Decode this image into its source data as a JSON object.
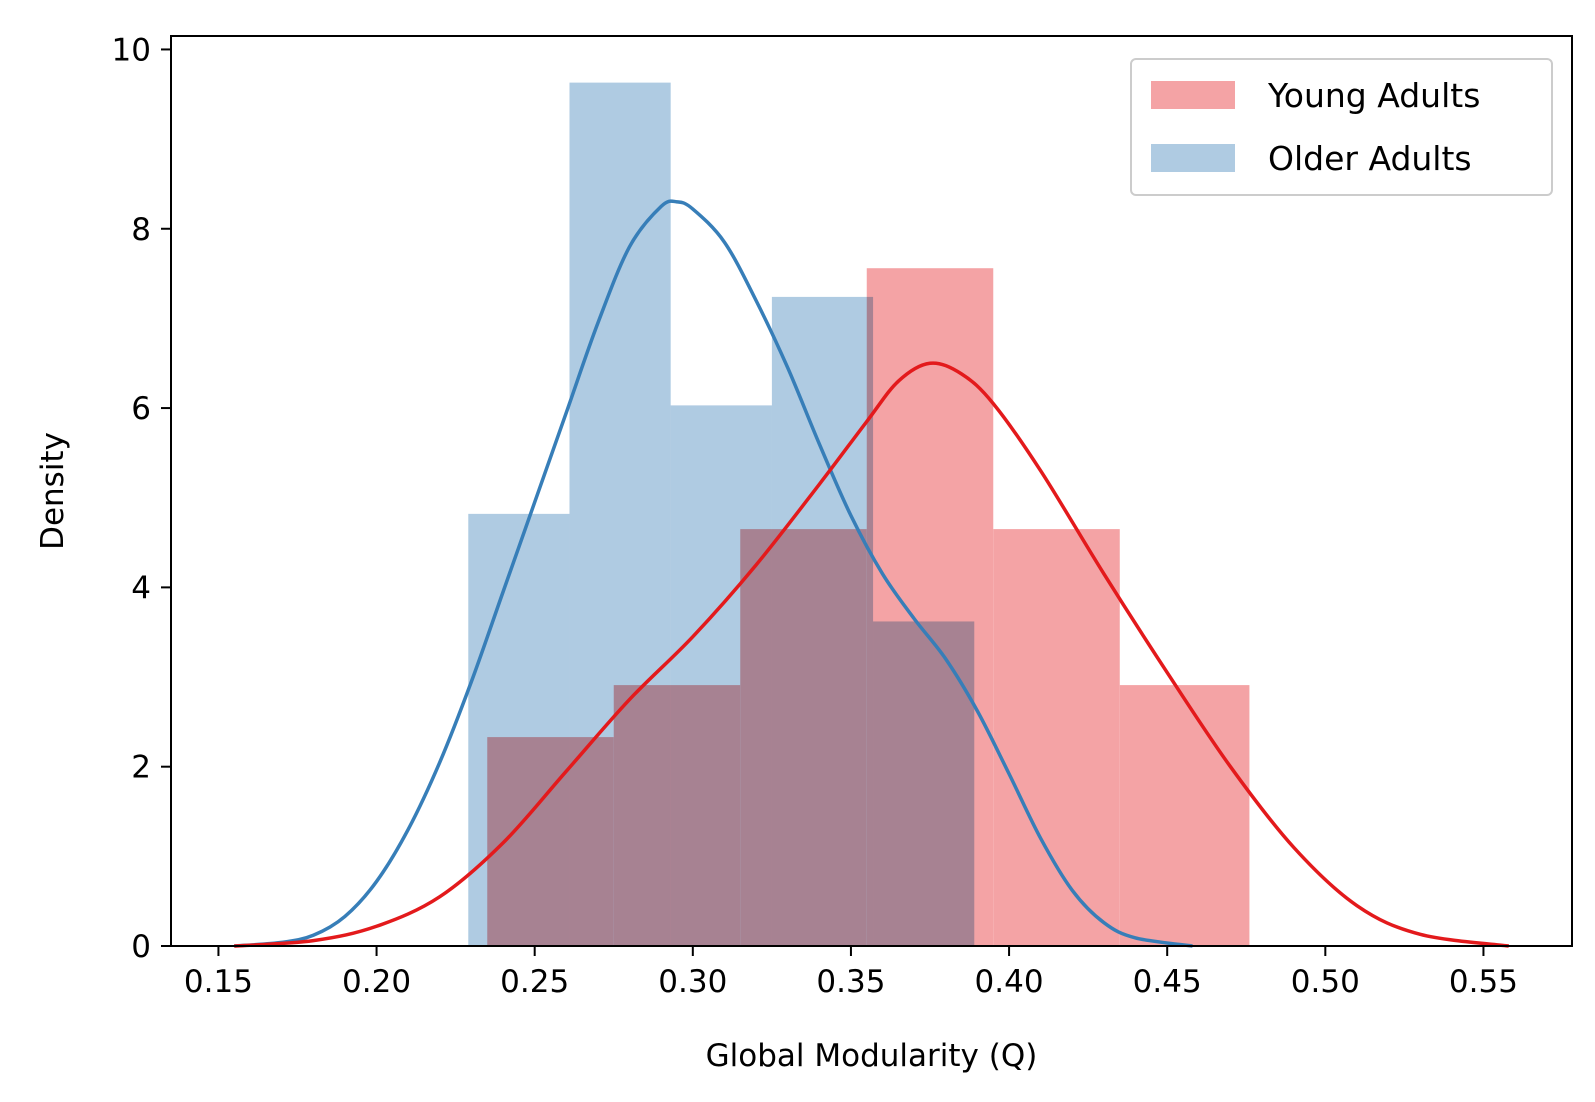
{
  "chart_data": {
    "type": "bar",
    "subtype": "histogram with kde",
    "xlabel": "Global Modularity (Q)",
    "ylabel": "Density",
    "xlim": [
      0.135,
      0.578
    ],
    "ylim": [
      0,
      10.15
    ],
    "xticks": [
      0.15,
      0.2,
      0.25,
      0.3,
      0.35,
      0.4,
      0.45,
      0.5,
      0.55
    ],
    "xtick_labels": [
      "0.15",
      "0.20",
      "0.25",
      "0.30",
      "0.35",
      "0.40",
      "0.45",
      "0.50",
      "0.55"
    ],
    "yticks": [
      0,
      2,
      4,
      6,
      8,
      10
    ],
    "ytick_labels": [
      "0",
      "2",
      "4",
      "6",
      "8",
      "10"
    ],
    "grid": false,
    "legend_position": "top-right",
    "series": [
      {
        "name": "Young Adults",
        "bar_color": "#f4a3a5",
        "line_color": "#e31a1c",
        "bins": [
          {
            "x0": 0.235,
            "x1": 0.275,
            "density": 2.33
          },
          {
            "x0": 0.275,
            "x1": 0.315,
            "density": 2.91
          },
          {
            "x0": 0.315,
            "x1": 0.355,
            "density": 4.65
          },
          {
            "x0": 0.355,
            "x1": 0.395,
            "density": 7.56
          },
          {
            "x0": 0.395,
            "x1": 0.435,
            "density": 4.65
          },
          {
            "x0": 0.435,
            "x1": 0.476,
            "density": 2.91
          }
        ],
        "kde": [
          [
            0.155,
            0.0
          ],
          [
            0.18,
            0.06
          ],
          [
            0.2,
            0.22
          ],
          [
            0.22,
            0.55
          ],
          [
            0.24,
            1.15
          ],
          [
            0.26,
            1.95
          ],
          [
            0.28,
            2.75
          ],
          [
            0.3,
            3.45
          ],
          [
            0.32,
            4.25
          ],
          [
            0.34,
            5.15
          ],
          [
            0.355,
            5.85
          ],
          [
            0.365,
            6.3
          ],
          [
            0.375,
            6.5
          ],
          [
            0.385,
            6.38
          ],
          [
            0.395,
            6.05
          ],
          [
            0.41,
            5.3
          ],
          [
            0.43,
            4.15
          ],
          [
            0.45,
            3.05
          ],
          [
            0.47,
            2.0
          ],
          [
            0.49,
            1.1
          ],
          [
            0.51,
            0.45
          ],
          [
            0.53,
            0.13
          ],
          [
            0.558,
            0.0
          ]
        ]
      },
      {
        "name": "Older Adults",
        "bar_color": "#afcbe2",
        "line_color": "#377eb8",
        "bins": [
          {
            "x0": 0.229,
            "x1": 0.261,
            "density": 4.82
          },
          {
            "x0": 0.261,
            "x1": 0.293,
            "density": 9.63
          },
          {
            "x0": 0.293,
            "x1": 0.325,
            "density": 6.03
          },
          {
            "x0": 0.325,
            "x1": 0.357,
            "density": 7.24
          },
          {
            "x0": 0.357,
            "x1": 0.389,
            "density": 3.62
          }
        ],
        "kde": [
          [
            0.155,
            0.0
          ],
          [
            0.17,
            0.04
          ],
          [
            0.18,
            0.12
          ],
          [
            0.19,
            0.33
          ],
          [
            0.2,
            0.72
          ],
          [
            0.21,
            1.3
          ],
          [
            0.22,
            2.05
          ],
          [
            0.23,
            2.95
          ],
          [
            0.24,
            3.95
          ],
          [
            0.25,
            4.95
          ],
          [
            0.26,
            5.95
          ],
          [
            0.27,
            6.95
          ],
          [
            0.28,
            7.8
          ],
          [
            0.29,
            8.25
          ],
          [
            0.295,
            8.3
          ],
          [
            0.3,
            8.22
          ],
          [
            0.31,
            7.85
          ],
          [
            0.32,
            7.2
          ],
          [
            0.33,
            6.45
          ],
          [
            0.34,
            5.6
          ],
          [
            0.35,
            4.8
          ],
          [
            0.36,
            4.15
          ],
          [
            0.37,
            3.65
          ],
          [
            0.38,
            3.2
          ],
          [
            0.39,
            2.62
          ],
          [
            0.4,
            1.92
          ],
          [
            0.41,
            1.2
          ],
          [
            0.42,
            0.62
          ],
          [
            0.43,
            0.26
          ],
          [
            0.44,
            0.09
          ],
          [
            0.458,
            0.0
          ]
        ]
      }
    ]
  }
}
